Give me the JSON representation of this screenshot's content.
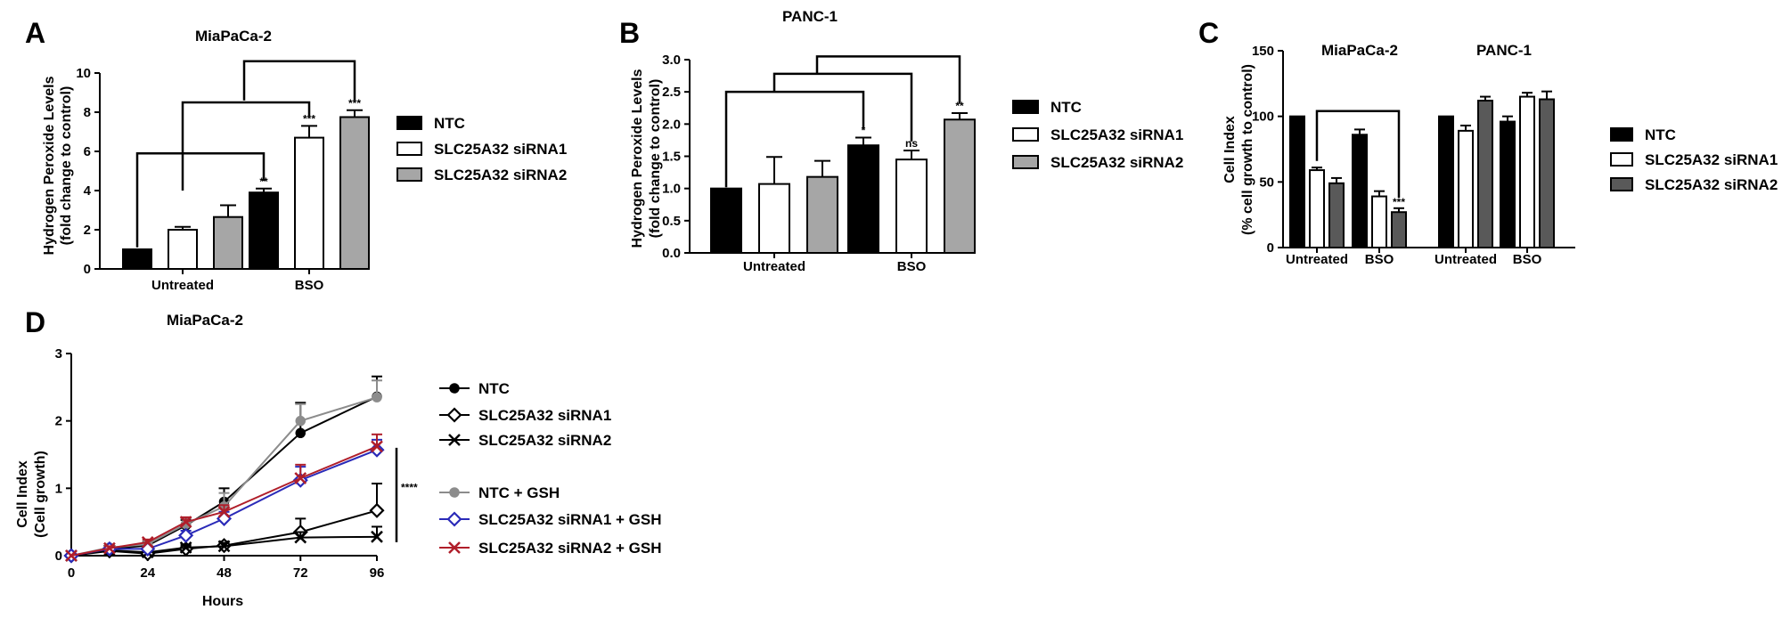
{
  "panels": [
    {
      "id": "A",
      "label": "A",
      "title": "MiaPaCa-2",
      "ylabel_lines": [
        "Hydrogen Peroxide Levels",
        "(fold change to control)"
      ],
      "group_labels": [
        "Untreated",
        "BSO"
      ],
      "significance": [
        "",
        "",
        "",
        "**",
        "***",
        "***"
      ],
      "legend": [
        "NTC",
        "SLC25A32 siRNA1",
        "SLC25A32 siRNA2"
      ]
    },
    {
      "id": "B",
      "label": "B",
      "title": "PANC-1",
      "ylabel_lines": [
        "Hydrogen Peroxide Levels",
        "(fold change to control)"
      ],
      "group_labels": [
        "Untreated",
        "BSO"
      ],
      "significance": [
        "",
        "",
        "",
        "*",
        "ns",
        "**"
      ],
      "legend": [
        "NTC",
        "SLC25A32 siRNA1",
        "SLC25A32 siRNA2"
      ]
    },
    {
      "id": "C",
      "label": "C",
      "cell_lines": [
        "MiaPaCa-2",
        "PANC-1"
      ],
      "ylabel_lines": [
        "Cell Index",
        "(% cell growth to control)"
      ],
      "group_labels": [
        "Untreated",
        "BSO",
        "Untreated",
        "BSO"
      ],
      "significance": [
        "",
        "",
        "",
        "",
        "",
        "***",
        "",
        "",
        "",
        "",
        "",
        ""
      ],
      "legend": [
        "NTC",
        "SLC25A32 siRNA1",
        "SLC25A32 siRNA2"
      ]
    },
    {
      "id": "D",
      "label": "D",
      "title": "MiaPaCa-2",
      "ylabel_lines": [
        "Cell Index",
        "(Cell growth)"
      ],
      "xlabel": "Hours",
      "significance": "****",
      "legend": [
        "NTC",
        "SLC25A32 siRNA1",
        "SLC25A32 siRNA2",
        "NTC + GSH",
        "SLC25A32 siRNA1 + GSH",
        "SLC25A32 siRNA2 + GSH"
      ]
    }
  ],
  "chart_data": [
    {
      "type": "bar",
      "panel": "A",
      "title": "MiaPaCa-2",
      "categories": [
        "Untreated",
        "BSO"
      ],
      "series": [
        {
          "name": "NTC",
          "values": [
            1.0,
            3.9
          ],
          "errors": [
            0.0,
            0.2
          ],
          "color": "#000000"
        },
        {
          "name": "SLC25A32 siRNA1",
          "values": [
            2.0,
            6.7
          ],
          "errors": [
            0.15,
            0.6
          ],
          "color": "#ffffff"
        },
        {
          "name": "SLC25A32 siRNA2",
          "values": [
            2.65,
            7.75
          ],
          "errors": [
            0.6,
            0.35
          ],
          "color": "#a6a6a6"
        }
      ],
      "ylim": [
        0,
        10
      ],
      "yticks": [
        0,
        2,
        4,
        6,
        8,
        10
      ],
      "ylabel": "Hydrogen Peroxide Levels (fold change to control)",
      "legend_position": "right"
    },
    {
      "type": "bar",
      "panel": "B",
      "title": "PANC-1",
      "categories": [
        "Untreated",
        "BSO"
      ],
      "series": [
        {
          "name": "NTC",
          "values": [
            1.0,
            1.67
          ],
          "errors": [
            0.0,
            0.12
          ],
          "color": "#000000"
        },
        {
          "name": "SLC25A32 siRNA1",
          "values": [
            1.07,
            1.45
          ],
          "errors": [
            0.42,
            0.14
          ],
          "color": "#ffffff"
        },
        {
          "name": "SLC25A32 siRNA2",
          "values": [
            1.18,
            2.07
          ],
          "errors": [
            0.25,
            0.1
          ],
          "color": "#a6a6a6"
        }
      ],
      "ylim": [
        0,
        3.0
      ],
      "yticks": [
        0.0,
        0.5,
        1.0,
        1.5,
        2.0,
        2.5,
        3.0
      ],
      "ylabel": "Hydrogen Peroxide Levels (fold change to control)",
      "legend_position": "right"
    },
    {
      "type": "bar",
      "panel": "C",
      "categories": [
        "Untreated",
        "BSO",
        "Untreated",
        "BSO"
      ],
      "cell_lines": [
        "MiaPaCa-2",
        "MiaPaCa-2",
        "PANC-1",
        "PANC-1"
      ],
      "series": [
        {
          "name": "NTC",
          "values": [
            100,
            86,
            100,
            96
          ],
          "errors": [
            0,
            4,
            0,
            4
          ],
          "color": "#000000"
        },
        {
          "name": "SLC25A32 siRNA1",
          "values": [
            59,
            39,
            89,
            115
          ],
          "errors": [
            2,
            4,
            4,
            3
          ],
          "color": "#ffffff"
        },
        {
          "name": "SLC25A32 siRNA2",
          "values": [
            49,
            27,
            112,
            113
          ],
          "errors": [
            4,
            3,
            3,
            6
          ],
          "color": "#595959"
        }
      ],
      "ylim": [
        0,
        150
      ],
      "yticks": [
        0,
        50,
        100,
        150
      ],
      "ylabel": "Cell Index (% cell growth to control)",
      "legend_position": "right"
    },
    {
      "type": "line",
      "panel": "D",
      "title": "MiaPaCa-2",
      "x": [
        0,
        12,
        24,
        36,
        48,
        72,
        96
      ],
      "series": [
        {
          "name": "NTC",
          "values": [
            0,
            0.1,
            0.15,
            0.45,
            0.8,
            1.82,
            2.36
          ],
          "errors": [
            0,
            0.03,
            0.05,
            0.08,
            0.2,
            0.45,
            0.3
          ],
          "color": "#000000",
          "marker": "circle"
        },
        {
          "name": "SLC25A32 siRNA1",
          "values": [
            0,
            0.07,
            0.03,
            0.1,
            0.15,
            0.35,
            0.67
          ],
          "errors": [
            0,
            0.02,
            0.02,
            0.04,
            0.06,
            0.2,
            0.4
          ],
          "color": "#000000",
          "marker": "diamond-open"
        },
        {
          "name": "SLC25A32 siRNA2",
          "values": [
            0,
            0.08,
            0.05,
            0.12,
            0.14,
            0.27,
            0.28
          ],
          "errors": [
            0,
            0.02,
            0.02,
            0.04,
            0.05,
            0.08,
            0.15
          ],
          "color": "#000000",
          "marker": "x"
        },
        {
          "name": "NTC + GSH",
          "values": [
            0,
            0.12,
            0.17,
            0.47,
            0.73,
            2.0,
            2.35
          ],
          "errors": [
            0,
            0.03,
            0.05,
            0.08,
            0.2,
            0.25,
            0.25
          ],
          "color": "#8c8c8c",
          "marker": "circle"
        },
        {
          "name": "SLC25A32 siRNA1 + GSH",
          "values": [
            0,
            0.1,
            0.1,
            0.3,
            0.55,
            1.12,
            1.57
          ],
          "errors": [
            0,
            0.03,
            0.04,
            0.07,
            0.1,
            0.2,
            0.15
          ],
          "color": "#2a2ab8",
          "marker": "diamond-open"
        },
        {
          "name": "SLC25A32 siRNA2 + GSH",
          "values": [
            0,
            0.11,
            0.2,
            0.5,
            0.65,
            1.15,
            1.62
          ],
          "errors": [
            0,
            0.03,
            0.04,
            0.07,
            0.1,
            0.2,
            0.18
          ],
          "color": "#b01e2a",
          "marker": "x"
        }
      ],
      "xlabel": "Hours",
      "ylabel": "Cell Index (Cell growth)",
      "xlim": [
        0,
        96
      ],
      "xticks": [
        0,
        24,
        48,
        72,
        96
      ],
      "ylim": [
        0,
        3
      ],
      "yticks": [
        0,
        1,
        2,
        3
      ],
      "legend_position": "right"
    }
  ]
}
